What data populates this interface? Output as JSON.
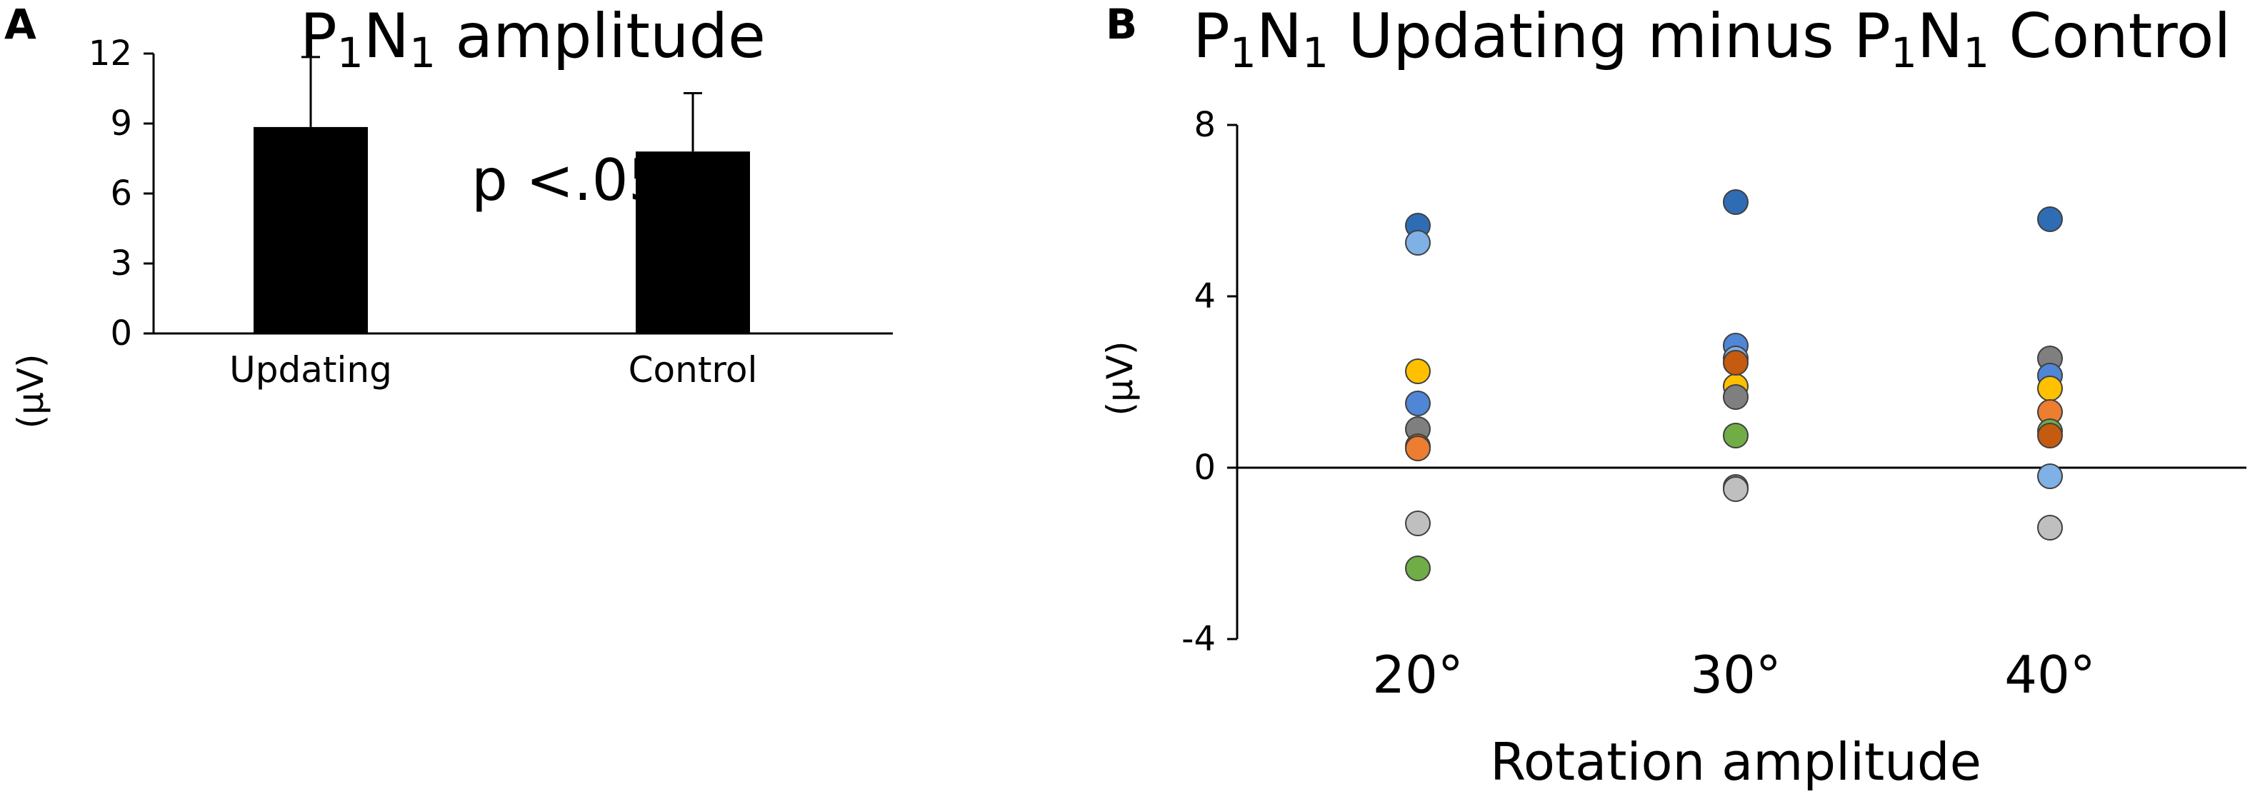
{
  "chart_data": [
    {
      "panel": "A",
      "type": "bar",
      "title": "P1N1 amplitude",
      "title_parts": {
        "p": "P",
        "sub1": "1",
        "n": "N",
        "sub2": "1",
        "rest": " amplitude"
      },
      "ylabel": "(μV)",
      "xlabel": "",
      "ylim": [
        0,
        12
      ],
      "yticks": [
        "0",
        "3",
        "6",
        "9",
        "12"
      ],
      "categories": [
        "Updating",
        "Control"
      ],
      "values": [
        8.85,
        7.8
      ],
      "error_upper": [
        11.85,
        10.3
      ],
      "bar_color": "#000000",
      "annotation": "p <.05",
      "grid": false
    },
    {
      "panel": "B",
      "type": "scatter",
      "title": "P1N1 Updating minus P1N1 Control",
      "title_parts": {
        "a": "P",
        "s1": "1",
        "b": "N",
        "s2": "1",
        "c": " Updating minus P",
        "s3": "1",
        "d": "N",
        "s4": "1",
        "e": " Control"
      },
      "ylabel": "(μV)",
      "xlabel": "Rotation amplitude",
      "ylim": [
        -4,
        8
      ],
      "yticks": [
        "-4",
        "0",
        "4",
        "8"
      ],
      "categories": [
        "20°",
        "30°",
        "40°"
      ],
      "reference_line": 0,
      "grid": false,
      "points": [
        {
          "x": "20°",
          "y": 5.65,
          "color": "#2e6db4"
        },
        {
          "x": "20°",
          "y": 5.25,
          "color": "#7fb0e6"
        },
        {
          "x": "20°",
          "y": 2.25,
          "color": "#ffc000"
        },
        {
          "x": "20°",
          "y": 1.5,
          "color": "#4f86d6"
        },
        {
          "x": "20°",
          "y": 0.9,
          "color": "#7f7f7f"
        },
        {
          "x": "20°",
          "y": 0.5,
          "color": "#c55a11"
        },
        {
          "x": "20°",
          "y": 0.45,
          "color": "#ed7d31"
        },
        {
          "x": "20°",
          "y": -1.3,
          "color": "#bfbfbf"
        },
        {
          "x": "20°",
          "y": -2.35,
          "color": "#70ad47"
        },
        {
          "x": "30°",
          "y": 6.2,
          "color": "#2e6db4"
        },
        {
          "x": "30°",
          "y": 2.85,
          "color": "#4f86d6"
        },
        {
          "x": "30°",
          "y": 2.55,
          "color": "#7fb0e6"
        },
        {
          "x": "30°",
          "y": 1.9,
          "color": "#ffc000"
        },
        {
          "x": "30°",
          "y": 2.45,
          "color": "#c55a11"
        },
        {
          "x": "30°",
          "y": 1.65,
          "color": "#7f7f7f"
        },
        {
          "x": "30°",
          "y": 0.75,
          "color": "#70ad47"
        },
        {
          "x": "30°",
          "y": -0.45,
          "color": "#7f7f7f"
        },
        {
          "x": "30°",
          "y": -0.5,
          "color": "#bfbfbf"
        },
        {
          "x": "40°",
          "y": 5.8,
          "color": "#2e6db4"
        },
        {
          "x": "40°",
          "y": 2.55,
          "color": "#7f7f7f"
        },
        {
          "x": "40°",
          "y": 2.15,
          "color": "#4f86d6"
        },
        {
          "x": "40°",
          "y": 1.85,
          "color": "#ffc000"
        },
        {
          "x": "40°",
          "y": 1.3,
          "color": "#ed7d31"
        },
        {
          "x": "40°",
          "y": 0.85,
          "color": "#70ad47"
        },
        {
          "x": "40°",
          "y": 0.75,
          "color": "#c55a11"
        },
        {
          "x": "40°",
          "y": -0.2,
          "color": "#7fb0e6"
        },
        {
          "x": "40°",
          "y": -1.4,
          "color": "#bfbfbf"
        }
      ]
    }
  ],
  "panels": {
    "a_letter": "A",
    "b_letter": "B"
  }
}
